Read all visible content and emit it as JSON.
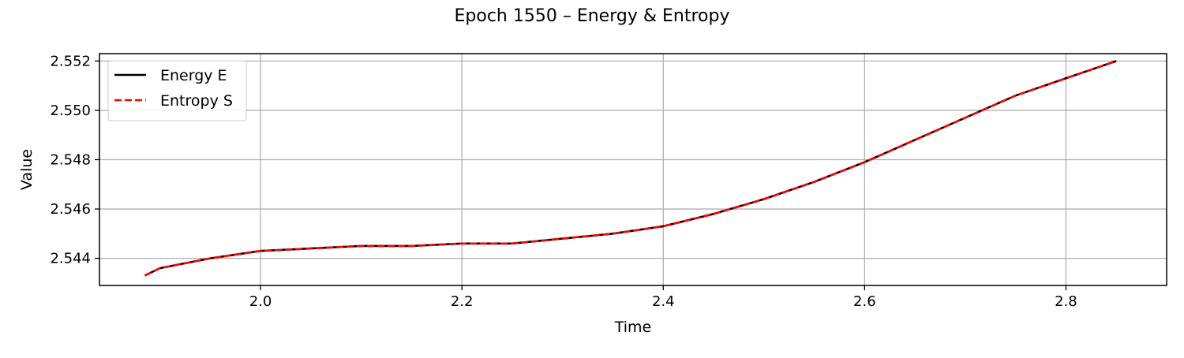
{
  "chart_data": {
    "type": "line",
    "title": "Epoch 1550 – Energy & Entropy",
    "xlabel": "Time",
    "ylabel": "Value",
    "xlim": [
      1.84,
      2.9
    ],
    "ylim": [
      2.5429,
      2.5523
    ],
    "xticks": [
      2.0,
      2.2,
      2.4,
      2.6,
      2.8
    ],
    "xtick_labels": [
      "2.0",
      "2.2",
      "2.4",
      "2.6",
      "2.8"
    ],
    "yticks": [
      2.544,
      2.546,
      2.548,
      2.55,
      2.552
    ],
    "ytick_labels": [
      "2.544",
      "2.546",
      "2.548",
      "2.550",
      "2.552"
    ],
    "grid": true,
    "legend_position": "top-left",
    "x": [
      1.885,
      1.9,
      1.95,
      2.0,
      2.05,
      2.1,
      2.15,
      2.2,
      2.25,
      2.3,
      2.35,
      2.4,
      2.45,
      2.5,
      2.55,
      2.6,
      2.65,
      2.7,
      2.75,
      2.8,
      2.85
    ],
    "series": [
      {
        "name": "Energy E",
        "color": "#000000",
        "style": "solid",
        "values": [
          2.5433,
          2.5436,
          2.544,
          2.5443,
          2.5444,
          2.5445,
          2.5445,
          2.5446,
          2.5446,
          2.5448,
          2.545,
          2.5453,
          2.5458,
          2.5464,
          2.5471,
          2.5479,
          2.5488,
          2.5497,
          2.5506,
          2.5513,
          2.552
        ]
      },
      {
        "name": "Entropy S",
        "color": "#ff0000",
        "style": "dashed",
        "values": [
          2.5433,
          2.5436,
          2.544,
          2.5443,
          2.5444,
          2.5445,
          2.5445,
          2.5446,
          2.5446,
          2.5448,
          2.545,
          2.5453,
          2.5458,
          2.5464,
          2.5471,
          2.5479,
          2.5488,
          2.5497,
          2.5506,
          2.5513,
          2.552
        ]
      }
    ]
  }
}
